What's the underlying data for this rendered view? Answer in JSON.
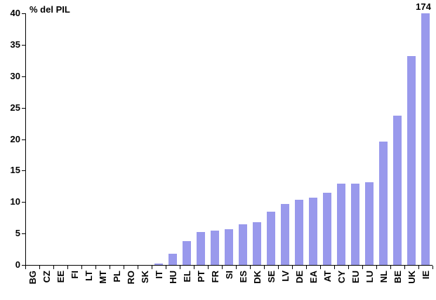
{
  "chart_data": {
    "type": "bar",
    "title": "% del PIL",
    "categories": [
      "BG",
      "CZ",
      "EE",
      "FI",
      "LT",
      "MT",
      "PL",
      "RO",
      "SK",
      "IT",
      "HU",
      "EL",
      "PT",
      "FR",
      "SI",
      "ES",
      "DK",
      "SE",
      "LV",
      "DE",
      "EA",
      "AT",
      "CY",
      "EU",
      "LU",
      "NL",
      "BE",
      "UK",
      "IE"
    ],
    "values": [
      0,
      0,
      0,
      0,
      0,
      0,
      0,
      0,
      0,
      0.2,
      1.8,
      3.8,
      5.2,
      5.5,
      5.7,
      6.5,
      6.8,
      8.5,
      9.7,
      10.4,
      10.7,
      11.5,
      12.9,
      12.9,
      13.2,
      19.6,
      23.7,
      33.2,
      174
    ],
    "clipped_bar": {
      "category": "IE",
      "label": "174"
    },
    "ylim": [
      0,
      40
    ],
    "yticks": [
      0,
      5,
      10,
      15,
      20,
      25,
      30,
      35,
      40
    ],
    "bar_color": "#9999EC",
    "axis_color": "#000000",
    "xlabel": "",
    "ylabel": "% del PIL",
    "grid": false,
    "legend": false
  }
}
